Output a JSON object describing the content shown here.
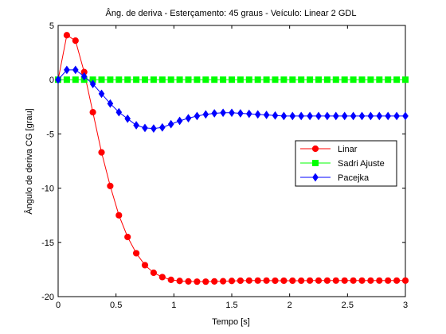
{
  "chart_data": {
    "type": "line",
    "title": "Âng. de deriva - Esterçamento: 45 graus - Veículo: Linear 2 GDL",
    "xlabel": "Tempo [s]",
    "ylabel": "Ângulo de deriva CG [grau]",
    "xlim": [
      0,
      3
    ],
    "ylim": [
      -20,
      5
    ],
    "xticks": [
      0,
      0.5,
      1,
      1.5,
      2,
      2.5,
      3
    ],
    "xtick_labels": [
      "0",
      "0.5",
      "1",
      "1.5",
      "2",
      "2.5",
      "3"
    ],
    "yticks": [
      5,
      0,
      -5,
      -10,
      -15,
      -20
    ],
    "ytick_labels": [
      "5",
      "0",
      "-5",
      "-10",
      "-15",
      "-20"
    ],
    "grid": false,
    "legend_position": "right",
    "x": [
      0,
      0.075,
      0.15,
      0.225,
      0.3,
      0.375,
      0.45,
      0.525,
      0.6,
      0.675,
      0.75,
      0.825,
      0.9,
      0.975,
      1.05,
      1.125,
      1.2,
      1.275,
      1.35,
      1.425,
      1.5,
      1.575,
      1.65,
      1.725,
      1.8,
      1.875,
      1.95,
      2.025,
      2.1,
      2.175,
      2.25,
      2.325,
      2.4,
      2.475,
      2.55,
      2.625,
      2.7,
      2.775,
      2.85,
      2.925,
      3.0
    ],
    "series": [
      {
        "name": "Linar",
        "color": "#ff0000",
        "marker": "circle",
        "values": [
          0,
          4.1,
          3.6,
          0.7,
          -3.0,
          -6.7,
          -9.8,
          -12.5,
          -14.5,
          -16.0,
          -17.1,
          -17.8,
          -18.2,
          -18.45,
          -18.55,
          -18.6,
          -18.62,
          -18.62,
          -18.6,
          -18.58,
          -18.55,
          -18.53,
          -18.52,
          -18.52,
          -18.52,
          -18.53,
          -18.53,
          -18.53,
          -18.53,
          -18.52,
          -18.52,
          -18.52,
          -18.52,
          -18.52,
          -18.52,
          -18.52,
          -18.52,
          -18.52,
          -18.52,
          -18.52,
          -18.52
        ]
      },
      {
        "name": "Sadri Ajuste",
        "color": "#00ff00",
        "marker": "square",
        "values": [
          0,
          0,
          0,
          0,
          0,
          0,
          0,
          0,
          0,
          0,
          0,
          0,
          0,
          0,
          0,
          0,
          0,
          0,
          0,
          0,
          0,
          0,
          0,
          0,
          0,
          0,
          0,
          0,
          0,
          0,
          0,
          0,
          0,
          0,
          0,
          0,
          0,
          0,
          0,
          0,
          0
        ]
      },
      {
        "name": "Pacejka",
        "color": "#0000ff",
        "marker": "diamond",
        "values": [
          0,
          0.9,
          0.9,
          0.3,
          -0.4,
          -1.3,
          -2.2,
          -3.0,
          -3.6,
          -4.2,
          -4.45,
          -4.5,
          -4.4,
          -4.1,
          -3.8,
          -3.55,
          -3.35,
          -3.2,
          -3.1,
          -3.05,
          -3.05,
          -3.1,
          -3.15,
          -3.2,
          -3.25,
          -3.3,
          -3.35,
          -3.35,
          -3.35,
          -3.35,
          -3.35,
          -3.35,
          -3.35,
          -3.35,
          -3.35,
          -3.35,
          -3.35,
          -3.35,
          -3.35,
          -3.35,
          -3.35
        ]
      }
    ]
  }
}
